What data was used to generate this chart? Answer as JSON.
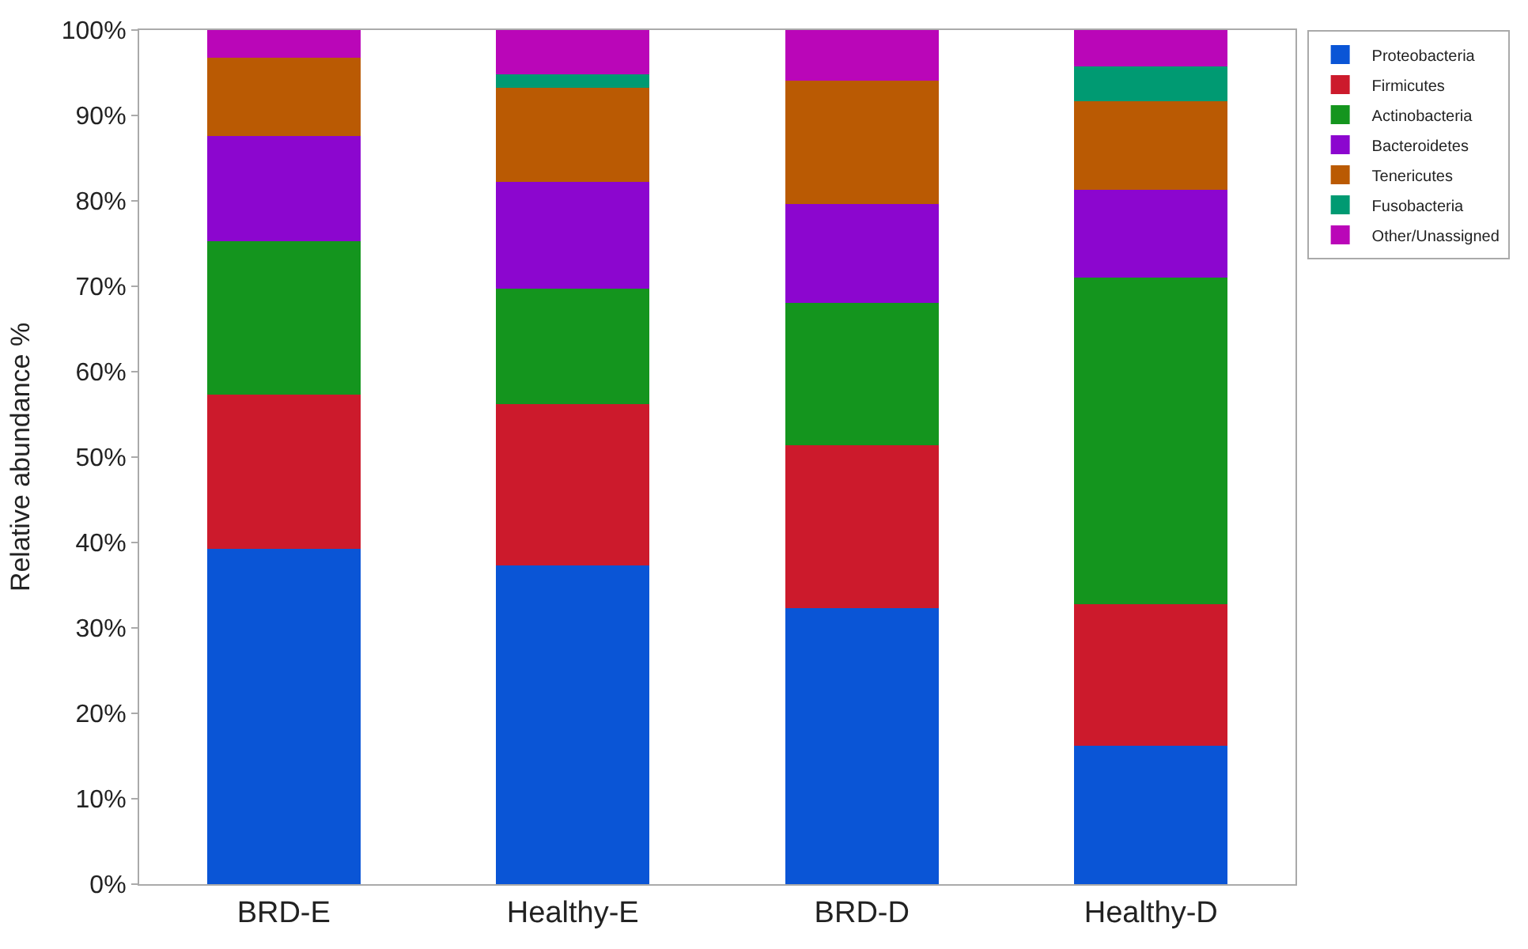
{
  "chart_data": {
    "type": "bar",
    "stacked": true,
    "ylabel": "Relative abundance %",
    "categories": [
      "BRD-E",
      "Healthy-E",
      "BRD-D",
      "Healthy-D"
    ],
    "ylim": [
      0,
      100
    ],
    "yticks": [
      {
        "value": 0,
        "label": "0%"
      },
      {
        "value": 10,
        "label": "10%"
      },
      {
        "value": 20,
        "label": "20%"
      },
      {
        "value": 30,
        "label": "30%"
      },
      {
        "value": 40,
        "label": "40%"
      },
      {
        "value": 50,
        "label": "50%"
      },
      {
        "value": 60,
        "label": "60%"
      },
      {
        "value": 70,
        "label": "70%"
      },
      {
        "value": 80,
        "label": "80%"
      },
      {
        "value": 90,
        "label": "90%"
      },
      {
        "value": 100,
        "label": "100%"
      }
    ],
    "legend": "top right",
    "series": [
      {
        "name": "Proteobacteria",
        "color": "#0a55d6",
        "values": [
          39.3,
          37.3,
          32.3,
          16.2
        ]
      },
      {
        "name": "Firmicutes",
        "color": "#cc1a2c",
        "values": [
          18.0,
          18.9,
          19.1,
          16.6
        ]
      },
      {
        "name": "Actinobacteria",
        "color": "#14951e",
        "values": [
          18.0,
          13.5,
          16.7,
          38.2
        ]
      },
      {
        "name": "Bacteroidetes",
        "color": "#8c06cf",
        "values": [
          12.3,
          12.5,
          11.5,
          10.3
        ]
      },
      {
        "name": "Tenericutes",
        "color": "#ba5a03",
        "values": [
          9.2,
          11.0,
          14.5,
          10.4
        ]
      },
      {
        "name": "Fusobacteria",
        "color": "#009a72",
        "values": [
          0,
          1.6,
          0,
          4.0
        ]
      },
      {
        "name": "Other/Unassigned",
        "color": "#ba06b8",
        "values": [
          3.2,
          5.2,
          5.9,
          4.3
        ]
      }
    ]
  }
}
